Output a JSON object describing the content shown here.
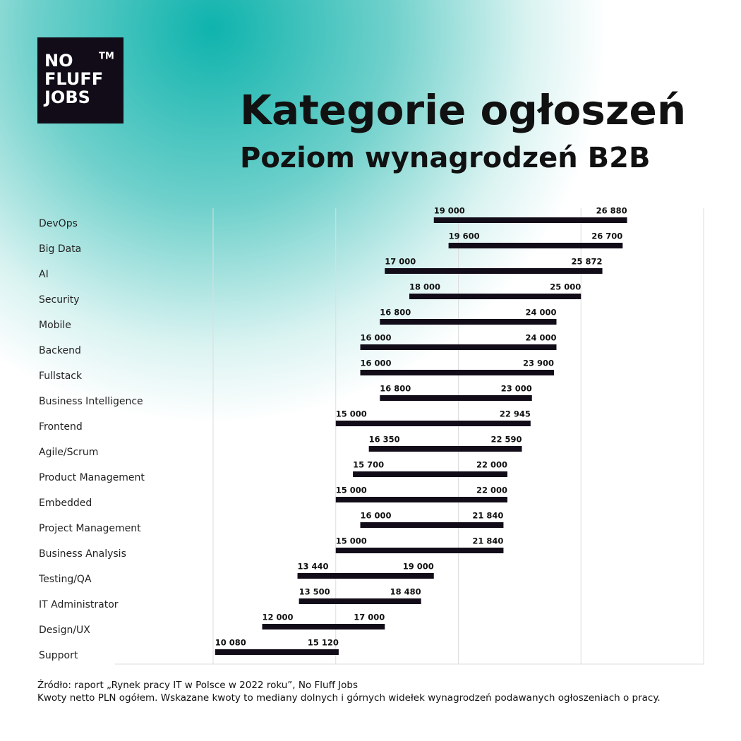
{
  "logo": {
    "lines": [
      "NO",
      "FLUFF",
      "JOBS"
    ],
    "mark": "TM"
  },
  "chart_data": {
    "type": "range-bar",
    "title": "Kategorie ogłoszeń",
    "subtitle": "Poziom wynagrodzeń B2B",
    "categories": [
      "DevOps",
      "Big Data",
      "AI",
      "Security",
      "Mobile",
      "Backend",
      "Fullstack",
      "Business Intelligence",
      "Frontend",
      "Agile/Scrum",
      "Product Management",
      "Embedded",
      "Project Management",
      "Business Analysis",
      "Testing/QA",
      "IT Administrator",
      "Design/UX",
      "Support"
    ],
    "low": {
      "values": [
        19000,
        19600,
        17000,
        18000,
        16800,
        16000,
        16000,
        16800,
        15000,
        16350,
        15700,
        15000,
        16000,
        15000,
        13440,
        13500,
        12000,
        10080
      ],
      "value_labels": [
        "19 000",
        "19 600",
        "17 000",
        "18 000",
        "16 800",
        "16 000",
        "16 000",
        "16 800",
        "15 000",
        "16 350",
        "15 700",
        "15 000",
        "16 000",
        "15 000",
        "13 440",
        "13 500",
        "12 000",
        "10 080"
      ]
    },
    "high": {
      "values": [
        26880,
        26700,
        25872,
        25000,
        24000,
        24000,
        23900,
        23000,
        22945,
        22590,
        22000,
        22000,
        21840,
        21840,
        19000,
        18480,
        17000,
        15120
      ],
      "value_labels": [
        "26 880",
        "26 700",
        "25 872",
        "25 000",
        "24 000",
        "24 000",
        "23 900",
        "23 000",
        "22 945",
        "22 590",
        "22 000",
        "22 000",
        "21 840",
        "21 840",
        "19 000",
        "18 480",
        "17 000",
        "15 120"
      ]
    },
    "color": "#120c19",
    "xlim": [
      6000,
      30000
    ],
    "xgrid": [
      10000,
      15000,
      20000,
      25000,
      30000
    ]
  },
  "footer": {
    "source": "Źródło: raport „Rynek pracy IT w Polsce w 2022 roku”, No Fluff Jobs",
    "note": "Kwoty netto PLN ogółem. Wskazane kwoty to mediany dolnych i górnych widełek wynagrodzeń podawanych ogłoszeniach o pracy."
  }
}
